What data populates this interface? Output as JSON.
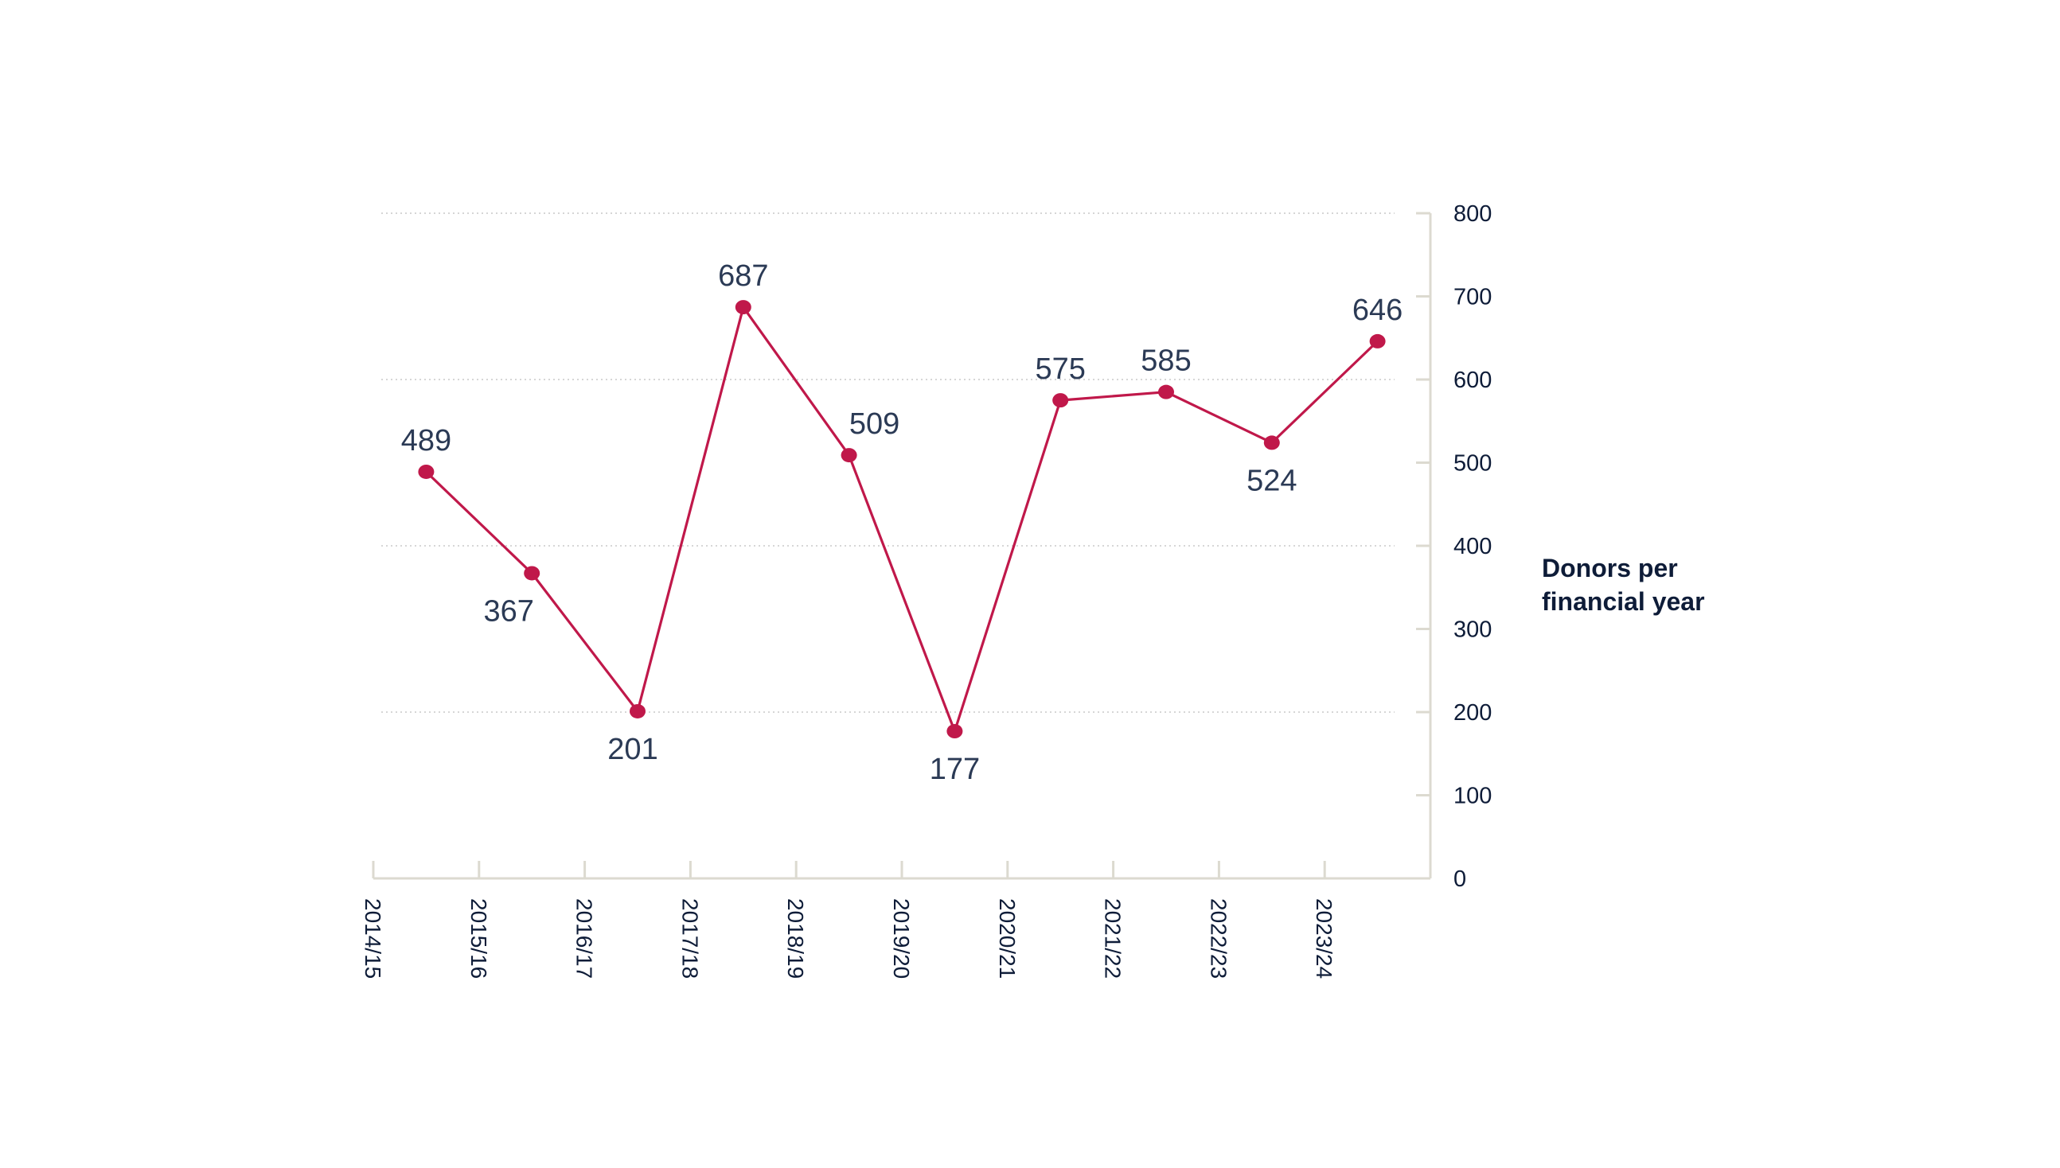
{
  "chart_data": {
    "type": "line",
    "title": "",
    "xlabel": "",
    "ylabel_lines": [
      "Donors per",
      "financial year"
    ],
    "categories": [
      "2014/15",
      "2015/16",
      "2016/17",
      "2017/18",
      "2018/19",
      "2019/20",
      "2020/21",
      "2021/22",
      "2022/23",
      "2023/24"
    ],
    "series": [
      {
        "name": "Donors per financial year",
        "x": [
          0.5,
          1.5,
          2.5,
          3.5,
          4.5,
          5.5,
          6.5,
          7.5,
          8.5,
          9.5
        ],
        "values": [
          489,
          367,
          201,
          687,
          509,
          177,
          575,
          585,
          524,
          646
        ],
        "labels": [
          "489",
          "367",
          "201",
          "687",
          "509",
          "177",
          "575",
          "585",
          "524",
          "646"
        ],
        "label_positions": [
          "above",
          "below",
          "below",
          "above",
          "above-right",
          "below",
          "above",
          "above",
          "below",
          "above"
        ]
      }
    ],
    "yticks": [
      0,
      100,
      200,
      300,
      400,
      500,
      600,
      700,
      800
    ],
    "ytick_labels": [
      "0",
      "100",
      "200",
      "300",
      "400",
      "500",
      "600",
      "700",
      "800"
    ],
    "ylim": [
      0,
      800
    ],
    "xlim": [
      0,
      10
    ],
    "gridlines_at": [
      200,
      400,
      600,
      800
    ],
    "grid": true,
    "y_axis_side": "right"
  },
  "colors": {
    "series": "#c0184a",
    "text": "#0e1c38",
    "data_label": "#2b3a55",
    "axis": "#dcdad0",
    "grid": "#c9c9c9"
  }
}
